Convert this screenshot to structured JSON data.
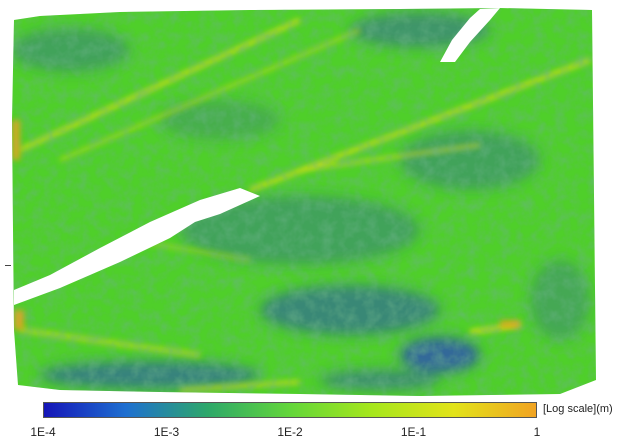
{
  "colorbar": {
    "unit_label": "[Log scale](m)",
    "colors": [
      "#1515b8",
      "#1e6fd0",
      "#2ea86a",
      "#63d63a",
      "#a6e61c",
      "#e2e31a",
      "#f1a322"
    ],
    "ticks": [
      {
        "label": "1E-4",
        "value": 0.0001
      },
      {
        "label": "1E-3",
        "value": 0.001
      },
      {
        "label": "1E-2",
        "value": 0.01
      },
      {
        "label": "1E-1",
        "value": 0.1
      },
      {
        "label": "1",
        "value": 1
      }
    ]
  },
  "map": {
    "base_color": "#4fcf2a",
    "low_color": "#2a4fb5",
    "high_color": "#e8e01a",
    "edge_color": "#f0a020",
    "void_color": "#ffffff"
  }
}
